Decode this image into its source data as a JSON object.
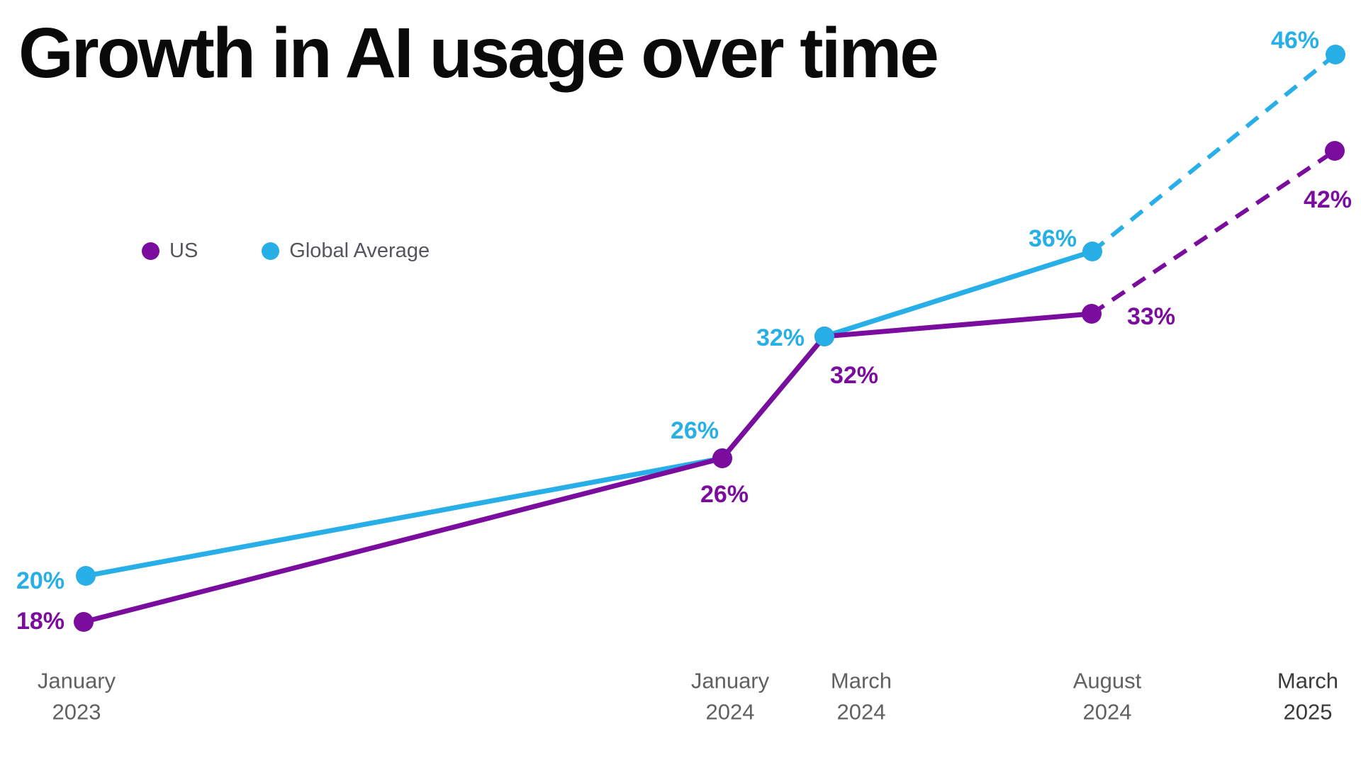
{
  "title": "Growth in AI usage over time",
  "legend": {
    "items": [
      {
        "label": "US",
        "color": "#7A0C9E"
      },
      {
        "label": "Global Average",
        "color": "#28AFE8"
      }
    ]
  },
  "chart_data": {
    "type": "line",
    "title": "Growth in AI usage over time",
    "categories": [
      "January 2023",
      "January 2024",
      "March 2024",
      "August 2024",
      "March 2025"
    ],
    "category_lines": [
      [
        "January",
        "2023"
      ],
      [
        "January",
        "2024"
      ],
      [
        "March",
        "2024"
      ],
      [
        "August",
        "2024"
      ],
      [
        "March",
        "2025"
      ]
    ],
    "series": [
      {
        "name": "US",
        "color": "#7A0C9E",
        "values": [
          18,
          26,
          32,
          33,
          42
        ],
        "point_labels": [
          "18%",
          "26%",
          "32%",
          "33%",
          "42%"
        ]
      },
      {
        "name": "Global Average",
        "color": "#28AFE8",
        "values": [
          20,
          26,
          32,
          36,
          46
        ],
        "point_labels": [
          "20%",
          "26%",
          "32%",
          "36%",
          "46%"
        ]
      }
    ],
    "projection": {
      "from_category": "August 2024",
      "to_category": "March 2025",
      "style": "dashed"
    },
    "xlabel": "",
    "ylabel": "",
    "ylim": [
      16,
      48
    ],
    "axes": {
      "grid": false,
      "y_axis_visible": false,
      "x_tick_labels_visible": true
    },
    "legend_position": "top-left",
    "colors": {
      "title_text": "#0a0a0a",
      "legend_text": "#54565b",
      "axis_text": "#616161",
      "axis_text_emphasis": "#3b3b3d"
    }
  }
}
